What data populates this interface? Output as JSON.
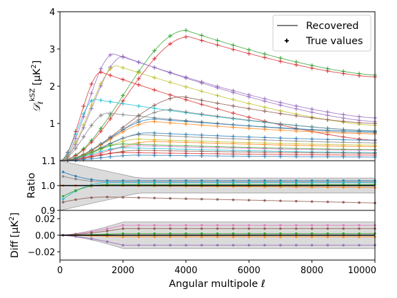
{
  "chart_data": [
    {
      "panel": "main",
      "type": "line",
      "ylabel": "𝒟ℓ^kSZ [μK²]",
      "ylabel_main": "𝒟",
      "ylabel_sub": "ℓ",
      "ylabel_sup": "kSZ",
      "ylabel_units": "[μK",
      "ylabel_units_sup": "2",
      "ylabel_units_close": "]",
      "xlim": [
        0,
        10000
      ],
      "ylim": [
        0,
        4
      ],
      "yticks": [
        1,
        2,
        3,
        4
      ],
      "bottom_tick_label": "1.1",
      "legend": {
        "placement": "top-right",
        "entries": [
          {
            "label": "Recovered",
            "marker": "line"
          },
          {
            "label": "True values",
            "marker": "plus"
          }
        ]
      },
      "x": [
        0,
        250,
        500,
        750,
        1000,
        1300,
        1600,
        2000,
        2500,
        3000,
        3500,
        4000,
        4500,
        5000,
        5500,
        6000,
        6500,
        7000,
        7500,
        8000,
        8500,
        9000,
        9500,
        10000
      ],
      "series_note": "one curve per model; peak amplitude, peak multipole, value at 10000",
      "series": [
        {
          "color": "#2ca02c",
          "peak": 3.5,
          "peak_ell": 4000,
          "end": 2.3
        },
        {
          "color": "#d62728",
          "peak": 3.33,
          "peak_ell": 4100,
          "end": 2.25
        },
        {
          "color": "#9467bd",
          "peak": 2.87,
          "peak_ell": 1700,
          "end": 1.15
        },
        {
          "color": "#9467bd",
          "peak": 2.8,
          "peak_ell": 2000,
          "end": 1.05
        },
        {
          "color": "#bcbd22",
          "peak": 2.55,
          "peak_ell": 1800,
          "end": 0.95
        },
        {
          "color": "#d62728",
          "peak": 2.38,
          "peak_ell": 1300,
          "end": 0.55
        },
        {
          "color": "#8c564b",
          "peak": 1.72,
          "peak_ell": 3900,
          "end": 1.0
        },
        {
          "color": "#17becf",
          "peak": 1.65,
          "peak_ell": 1100,
          "end": 0.8
        },
        {
          "color": "#7f7f7f",
          "peak": 1.37,
          "peak_ell": 3500,
          "end": 0.8
        },
        {
          "color": "#7f7f7f",
          "peak": 1.28,
          "peak_ell": 1500,
          "end": 0.75
        },
        {
          "color": "#1f77b4",
          "peak": 1.12,
          "peak_ell": 3000,
          "end": 0.78
        },
        {
          "color": "#ff7f0e",
          "peak": 1.05,
          "peak_ell": 3000,
          "end": 0.72
        },
        {
          "color": "#1f77b4",
          "peak": 0.75,
          "peak_ell": 2800,
          "end": 0.55
        },
        {
          "color": "#7f7f7f",
          "peak": 0.7,
          "peak_ell": 2600,
          "end": 0.48
        },
        {
          "color": "#bcbd22",
          "peak": 0.58,
          "peak_ell": 2500,
          "end": 0.42
        },
        {
          "color": "#ff7f0e",
          "peak": 0.52,
          "peak_ell": 3000,
          "end": 0.38
        },
        {
          "color": "#2ca02c",
          "peak": 0.45,
          "peak_ell": 2000,
          "end": 0.3
        },
        {
          "color": "#e377c2",
          "peak": 0.4,
          "peak_ell": 2500,
          "end": 0.28
        },
        {
          "color": "#17becf",
          "peak": 0.35,
          "peak_ell": 2000,
          "end": 0.22
        },
        {
          "color": "#8c564b",
          "peak": 0.28,
          "peak_ell": 2500,
          "end": 0.2
        },
        {
          "color": "#d62728",
          "peak": 0.22,
          "peak_ell": 2000,
          "end": 0.15
        },
        {
          "color": "#1f77b4",
          "peak": 0.15,
          "peak_ell": 2500,
          "end": 0.1
        }
      ]
    },
    {
      "panel": "ratio",
      "type": "line",
      "ylabel": "Ratio",
      "xlim": [
        0,
        10000
      ],
      "ylim": [
        0.9,
        1.1
      ],
      "yticks": [
        0.9,
        1.0
      ],
      "ytick_labels": [
        "0.9",
        "1.0"
      ],
      "band": {
        "color": "#bdbdbd",
        "upper_start": 1.1,
        "upper_end": 1.03,
        "lower_start": 0.9,
        "lower_end": 0.97
      },
      "x": [
        100,
        500,
        1000,
        1500,
        2000,
        2500,
        3000,
        3500,
        4000,
        4500,
        5000,
        5500,
        6000,
        6500,
        7000,
        7500,
        8000,
        8500,
        9000,
        9500,
        10000
      ],
      "series": [
        {
          "color": "#1f77b4",
          "start": 1.06,
          "plateau": 1.02,
          "end": 1.02
        },
        {
          "color": "#7f7f7f",
          "start": 1.04,
          "plateau": 1.015,
          "end": 1.015
        },
        {
          "color": "#17becf",
          "start": 0.935,
          "plateau": 1.012,
          "end": 1.012
        },
        {
          "color": "#2ca02c",
          "start": 0.95,
          "plateau": 1.004,
          "end": 1.004
        },
        {
          "color": "#ff7f0e",
          "start": 1.0,
          "plateau": 1.0,
          "end": 0.992
        },
        {
          "color": "#8c564b",
          "start": 0.93,
          "plateau": 0.954,
          "end": 0.93
        }
      ]
    },
    {
      "panel": "diff",
      "type": "line",
      "ylabel": "Diff [μK²]",
      "ylabel_text": "Diff [μK",
      "ylabel_sup": "2",
      "ylabel_close": "]",
      "xlabel": "Angular multipole ℓ",
      "xlim": [
        0,
        10000
      ],
      "ylim": [
        -0.03,
        0.03
      ],
      "yticks": [
        -0.02,
        0.0,
        0.02
      ],
      "ytick_labels": [
        "−0.02",
        "0.00",
        "0.02"
      ],
      "xticks": [
        0,
        2000,
        4000,
        6000,
        8000,
        10000
      ],
      "xtick_labels": [
        "0",
        "2000",
        "4000",
        "6000",
        "8000",
        "10000"
      ],
      "band": {
        "color": "#bdbdbd",
        "upper": 0.016,
        "lower": -0.016
      },
      "x": [
        100,
        500,
        1000,
        1500,
        2000,
        2500,
        3000,
        3500,
        4000,
        4500,
        5000,
        5500,
        6000,
        6500,
        7000,
        7500,
        8000,
        8500,
        9000,
        9500,
        10000
      ],
      "series": [
        {
          "color": "#e377c2",
          "plateau": 0.012
        },
        {
          "color": "#8c564b",
          "plateau": 0.008
        },
        {
          "color": "#2ca02c",
          "plateau": 0.002
        },
        {
          "color": "#ff7f0e",
          "plateau": -0.002
        },
        {
          "color": "#9467bd",
          "plateau": -0.012
        }
      ]
    }
  ]
}
